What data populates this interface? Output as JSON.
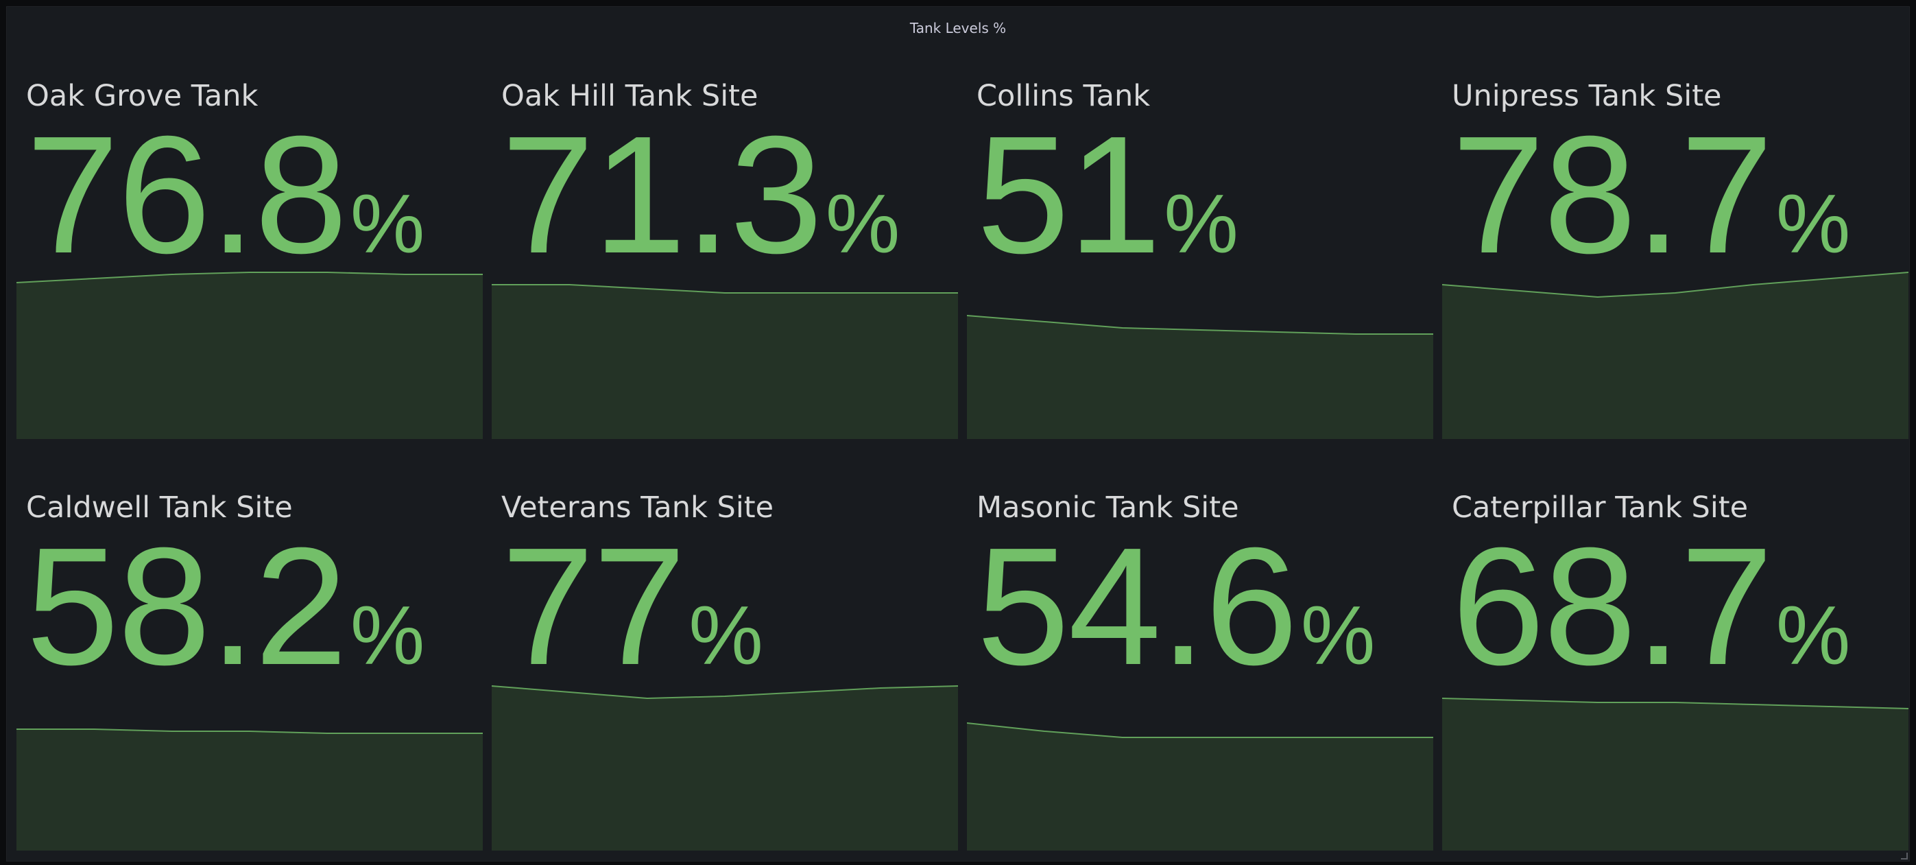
{
  "panel": {
    "title": "Tank Levels %"
  },
  "colors": {
    "value": "#73bf69",
    "fill": "#243326",
    "line": "#73bf69"
  },
  "tiles": [
    {
      "name": "Oak Grove Tank",
      "value": "76.8",
      "unit": "%",
      "trend": [
        0.76,
        0.78,
        0.8,
        0.81,
        0.81,
        0.8,
        0.8
      ]
    },
    {
      "name": "Oak Hill Tank Site",
      "value": "71.3",
      "unit": "%",
      "trend": [
        0.75,
        0.75,
        0.73,
        0.71,
        0.71,
        0.71,
        0.71
      ]
    },
    {
      "name": "Collins Tank",
      "value": "51",
      "unit": "%",
      "trend": [
        0.6,
        0.57,
        0.54,
        0.53,
        0.52,
        0.51,
        0.51
      ]
    },
    {
      "name": "Unipress Tank Site",
      "value": "78.7",
      "unit": "%",
      "trend": [
        0.75,
        0.72,
        0.69,
        0.71,
        0.75,
        0.78,
        0.81
      ]
    },
    {
      "name": "Caldwell Tank Site",
      "value": "58.2",
      "unit": "%",
      "trend": [
        0.59,
        0.59,
        0.58,
        0.58,
        0.57,
        0.57,
        0.57
      ]
    },
    {
      "name": "Veterans Tank Site",
      "value": "77",
      "unit": "%",
      "trend": [
        0.8,
        0.77,
        0.74,
        0.75,
        0.77,
        0.79,
        0.8
      ]
    },
    {
      "name": "Masonic Tank Site",
      "value": "54.6",
      "unit": "%",
      "trend": [
        0.62,
        0.58,
        0.55,
        0.55,
        0.55,
        0.55,
        0.55
      ]
    },
    {
      "name": "Caterpillar Tank Site",
      "value": "68.7",
      "unit": "%",
      "trend": [
        0.74,
        0.73,
        0.72,
        0.72,
        0.71,
        0.7,
        0.69
      ]
    }
  ]
}
